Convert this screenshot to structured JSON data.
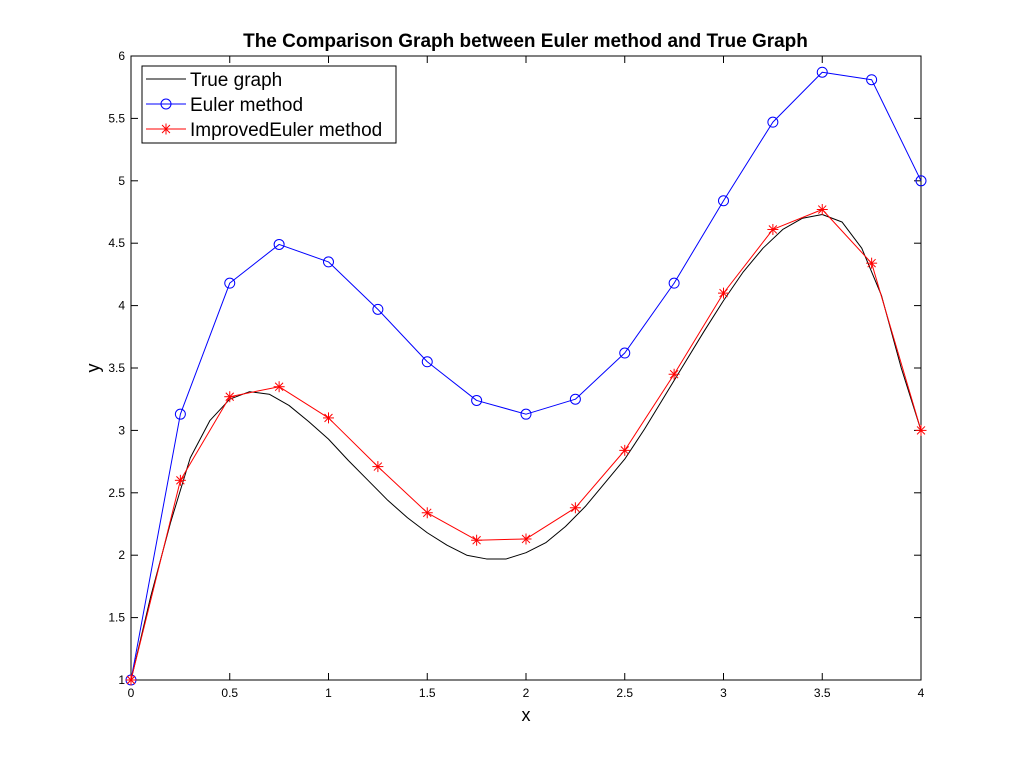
{
  "chart_data": {
    "type": "line",
    "title": "The Comparison Graph between Euler method and True Graph",
    "xlabel": "x",
    "ylabel": "y",
    "xlim": [
      0,
      4
    ],
    "ylim": [
      1,
      6
    ],
    "xticks": [
      0,
      0.5,
      1,
      1.5,
      2,
      2.5,
      3,
      3.5,
      4
    ],
    "yticks": [
      1,
      1.5,
      2,
      2.5,
      3,
      3.5,
      4,
      4.5,
      5,
      5.5,
      6
    ],
    "xtick_labels": [
      "0",
      "0.5",
      "1",
      "1.5",
      "2",
      "2.5",
      "3",
      "3.5",
      "4"
    ],
    "ytick_labels": [
      "1",
      "1.5",
      "2",
      "2.5",
      "3",
      "3.5",
      "4",
      "4.5",
      "5",
      "5.5",
      "6"
    ],
    "grid": false,
    "legend_position": "top-left",
    "series": [
      {
        "name": "True graph",
        "color": "#000000",
        "marker": "none",
        "x": [
          0,
          0.1,
          0.2,
          0.3,
          0.4,
          0.5,
          0.6,
          0.7,
          0.8,
          0.9,
          1.0,
          1.1,
          1.2,
          1.3,
          1.4,
          1.5,
          1.6,
          1.7,
          1.8,
          1.9,
          2.0,
          2.1,
          2.2,
          2.3,
          2.4,
          2.5,
          2.6,
          2.7,
          2.8,
          2.9,
          3.0,
          3.1,
          3.2,
          3.3,
          3.4,
          3.5,
          3.6,
          3.7,
          3.8,
          3.9,
          4.0
        ],
        "y": [
          1.0,
          1.67,
          2.26,
          2.78,
          3.08,
          3.25,
          3.31,
          3.29,
          3.2,
          3.07,
          2.93,
          2.76,
          2.6,
          2.44,
          2.3,
          2.18,
          2.08,
          2.0,
          1.97,
          1.97,
          2.02,
          2.1,
          2.23,
          2.39,
          2.58,
          2.77,
          3.01,
          3.27,
          3.53,
          3.79,
          4.04,
          4.27,
          4.46,
          4.61,
          4.7,
          4.73,
          4.67,
          4.46,
          4.08,
          3.5,
          3.0
        ]
      },
      {
        "name": "Euler method",
        "color": "#0000ff",
        "marker": "circle",
        "x": [
          0,
          0.25,
          0.5,
          0.75,
          1.0,
          1.25,
          1.5,
          1.75,
          2.0,
          2.25,
          2.5,
          2.75,
          3.0,
          3.25,
          3.5,
          3.75,
          4.0
        ],
        "y": [
          1.0,
          3.13,
          4.18,
          4.49,
          4.35,
          3.97,
          3.55,
          3.24,
          3.13,
          3.25,
          3.62,
          4.18,
          4.84,
          5.47,
          5.87,
          5.81,
          5.0
        ]
      },
      {
        "name": "ImprovedEuler method",
        "color": "#ff0000",
        "marker": "asterisk",
        "x": [
          0,
          0.25,
          0.5,
          0.75,
          1.0,
          1.25,
          1.5,
          1.75,
          2.0,
          2.25,
          2.5,
          2.75,
          3.0,
          3.25,
          3.5,
          3.75,
          4.0
        ],
        "y": [
          1.0,
          2.6,
          3.27,
          3.35,
          3.1,
          2.71,
          2.34,
          2.12,
          2.13,
          2.38,
          2.84,
          3.45,
          4.1,
          4.61,
          4.77,
          4.34,
          3.0
        ]
      }
    ]
  }
}
